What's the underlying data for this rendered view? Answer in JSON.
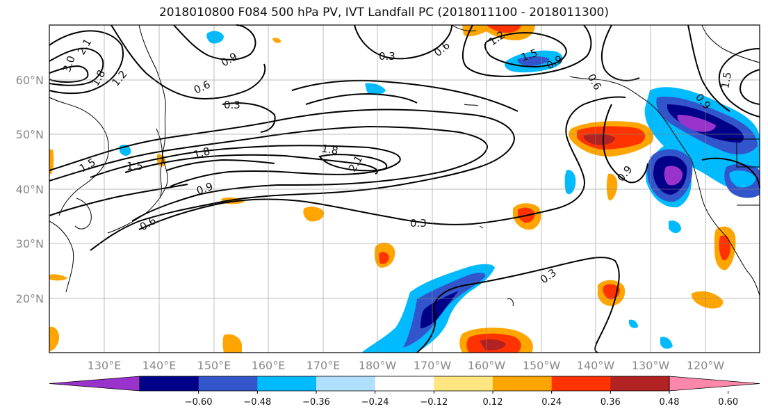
{
  "title": "2018010800 F084 500 hPa PV, IVT Landfall PC (2018011100 - 2018011300)",
  "lat_labels": [
    "60°N",
    "50°N",
    "40°N",
    "30°N",
    "20°N"
  ],
  "lon_labels": [
    "130°E",
    "140°E",
    "150°E",
    "160°E",
    "170°E",
    "180°W",
    "170°W",
    "160°W",
    "150°W",
    "140°W",
    "130°W",
    "120°W"
  ],
  "contour_labels": [
    "3.0",
    "2.1",
    "1.8",
    "1.2",
    "1.5",
    "0.9",
    "0.6",
    "0.3",
    "0.3",
    "1.8",
    "1.8",
    "2.1",
    "1.5",
    "0.9",
    "0.6",
    "0.3",
    "0.3",
    "0.6",
    "1.2",
    "1.5",
    "0.9",
    "0.6",
    "0.9",
    "0.9",
    "1.5"
  ],
  "colorbar": {
    "ticks": [
      "−0.60",
      "−0.48",
      "−0.36",
      "−0.24",
      "−0.12",
      "0.12",
      "0.24",
      "0.36",
      "0.48",
      "0.60"
    ],
    "colors": [
      "#9933cc",
      "#000088",
      "#3355cc",
      "#00bbff",
      "#b0e0ff",
      "#ffffff",
      "#ffe680",
      "#ffa500",
      "#ff3300",
      "#b22222",
      "#ff88aa"
    ]
  },
  "palette": {
    "neg_strong": "#000088",
    "neg_mid": "#3355cc",
    "neg_light": "#00bbff",
    "neg_pale": "#b0e0ff",
    "neg_purple": "#9933cc",
    "pos_pale": "#ffe680",
    "pos_mid": "#ffa500",
    "pos_strong": "#ff3300",
    "pos_dark": "#b22222",
    "pos_pink": "#ff88aa"
  }
}
